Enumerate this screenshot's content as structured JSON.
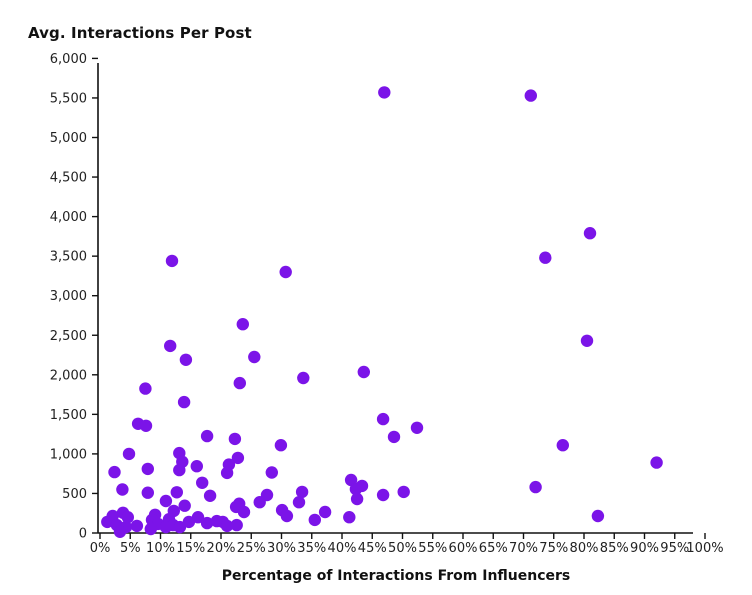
{
  "chart_data": {
    "type": "scatter",
    "title": "Avg. Interactions Per Post",
    "xlabel": "Percentage of Interactions From Influencers",
    "ylabel": "Avg. Interactions Per Post",
    "xlim": [
      0,
      100
    ],
    "ylim": [
      0,
      6000
    ],
    "grid": false,
    "legend": "none",
    "marker_color": "#7B14E8",
    "axis_color": "#111111",
    "tick_label_color": "#222222",
    "x_tick_labels": [
      "0%",
      "5%",
      "10%",
      "15%",
      "20%",
      "25%",
      "30%",
      "35%",
      "40%",
      "45%",
      "50%",
      "55%",
      "60%",
      "65%",
      "70%",
      "75%",
      "80%",
      "85%",
      "90%",
      "95%",
      "100%"
    ],
    "x_tick_values": [
      0,
      5,
      10,
      15,
      20,
      25,
      30,
      35,
      40,
      45,
      50,
      55,
      60,
      65,
      70,
      75,
      80,
      85,
      90,
      95,
      100
    ],
    "y_tick_labels": [
      "0",
      "500",
      "1,000",
      "1,500",
      "2,000",
      "2,500",
      "3,000",
      "3,500",
      "4,000",
      "4,500",
      "5,000",
      "5,500",
      "6,000"
    ],
    "y_tick_values": [
      0,
      500,
      1000,
      1500,
      2000,
      2500,
      3000,
      3500,
      4000,
      4500,
      5000,
      5500,
      6000
    ],
    "points": [
      [
        47.0,
        5570
      ],
      [
        71.2,
        5530
      ],
      [
        81.0,
        3790
      ],
      [
        73.6,
        3480
      ],
      [
        11.9,
        3440
      ],
      [
        30.7,
        3300
      ],
      [
        23.6,
        2640
      ],
      [
        80.5,
        2430
      ],
      [
        11.6,
        2365
      ],
      [
        25.5,
        2225
      ],
      [
        14.2,
        2190
      ],
      [
        43.6,
        2035
      ],
      [
        33.6,
        1960
      ],
      [
        23.1,
        1895
      ],
      [
        7.5,
        1825
      ],
      [
        13.9,
        1655
      ],
      [
        46.8,
        1440
      ],
      [
        6.3,
        1380
      ],
      [
        7.6,
        1355
      ],
      [
        52.4,
        1330
      ],
      [
        17.7,
        1225
      ],
      [
        48.6,
        1215
      ],
      [
        22.3,
        1190
      ],
      [
        29.9,
        1110
      ],
      [
        76.5,
        1110
      ],
      [
        13.1,
        1010
      ],
      [
        4.8,
        1000
      ],
      [
        22.8,
        950
      ],
      [
        13.6,
        900
      ],
      [
        92.0,
        890
      ],
      [
        21.3,
        865
      ],
      [
        16.0,
        845
      ],
      [
        13.1,
        795
      ],
      [
        7.9,
        810
      ],
      [
        2.4,
        770
      ],
      [
        28.4,
        765
      ],
      [
        21.0,
        760
      ],
      [
        41.5,
        670
      ],
      [
        16.9,
        635
      ],
      [
        43.3,
        595
      ],
      [
        72.0,
        580
      ],
      [
        42.3,
        555
      ],
      [
        3.7,
        550
      ],
      [
        33.4,
        520
      ],
      [
        50.2,
        520
      ],
      [
        12.7,
        515
      ],
      [
        7.9,
        510
      ],
      [
        46.8,
        480
      ],
      [
        27.6,
        480
      ],
      [
        18.2,
        470
      ],
      [
        42.5,
        430
      ],
      [
        10.9,
        405
      ],
      [
        26.4,
        390
      ],
      [
        32.9,
        390
      ],
      [
        23.0,
        370
      ],
      [
        14.0,
        345
      ],
      [
        22.5,
        330
      ],
      [
        30.1,
        290
      ],
      [
        12.2,
        280
      ],
      [
        37.2,
        265
      ],
      [
        23.8,
        265
      ],
      [
        3.8,
        255
      ],
      [
        9.1,
        230
      ],
      [
        30.9,
        215
      ],
      [
        2.1,
        215
      ],
      [
        82.3,
        215
      ],
      [
        41.2,
        200
      ],
      [
        4.6,
        200
      ],
      [
        16.2,
        200
      ],
      [
        11.4,
        175
      ],
      [
        8.6,
        165
      ],
      [
        35.5,
        165
      ],
      [
        19.3,
        150
      ],
      [
        14.7,
        140
      ],
      [
        1.2,
        140
      ],
      [
        20.3,
        140
      ],
      [
        17.7,
        125
      ],
      [
        9.6,
        115
      ],
      [
        22.6,
        100
      ],
      [
        12.1,
        100
      ],
      [
        2.8,
        100
      ],
      [
        21.0,
        90
      ],
      [
        6.1,
        90
      ],
      [
        13.2,
        75
      ],
      [
        10.9,
        75
      ],
      [
        4.3,
        75
      ],
      [
        8.4,
        50
      ],
      [
        3.3,
        15
      ]
    ]
  }
}
